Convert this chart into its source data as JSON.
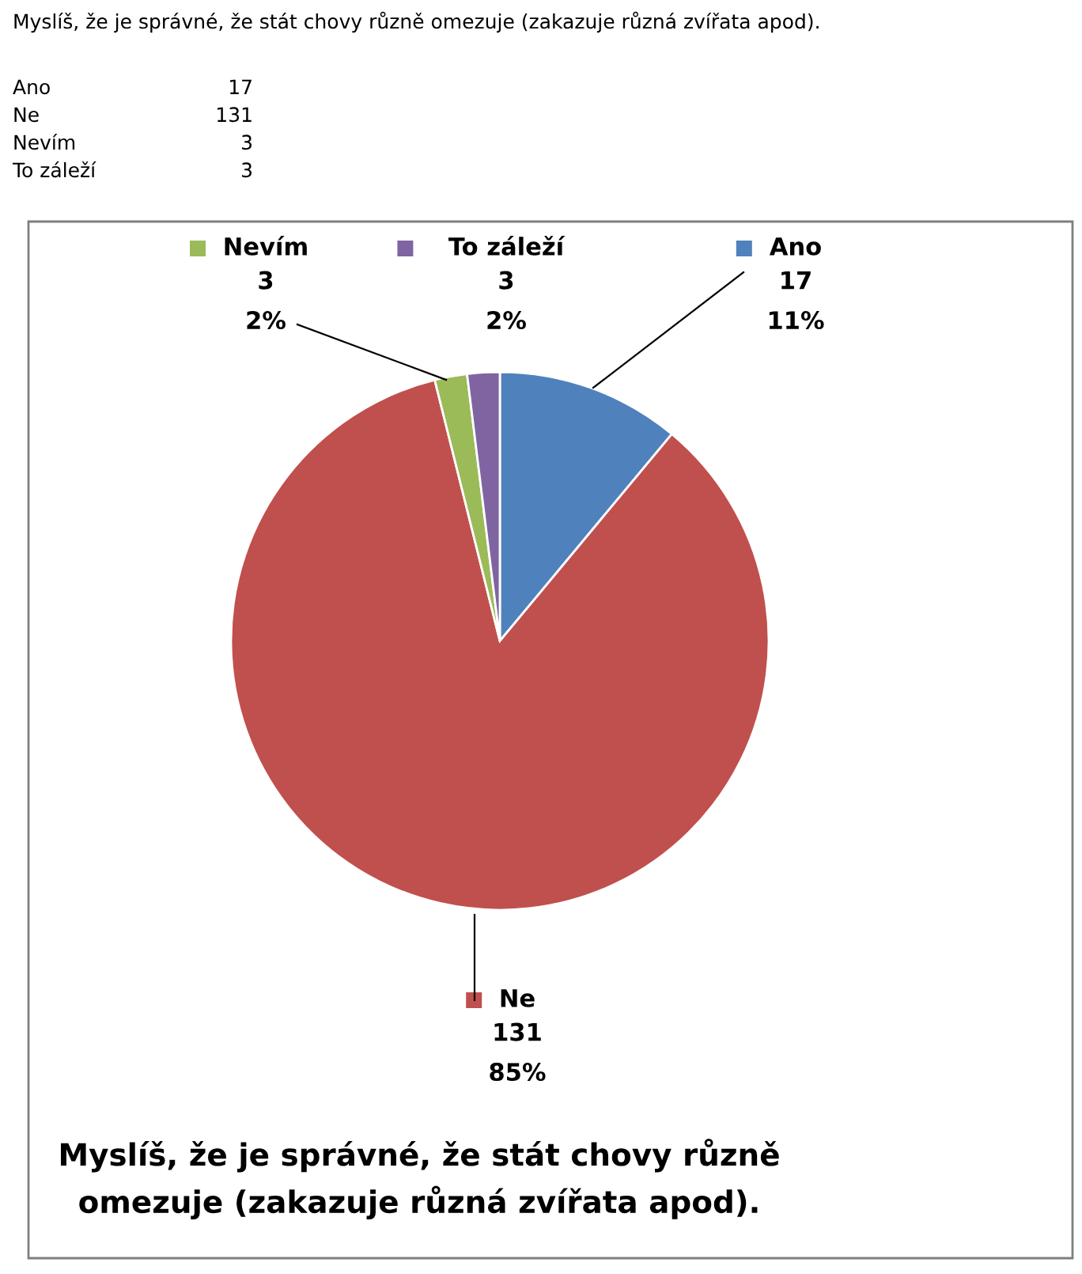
{
  "chart_data": {
    "type": "pie",
    "title": "Myslíš, že je správné, že stát chovy různě\nomezuje (zakazuje různá zvířata apod).",
    "annotations": [
      "Myslíš, že je správné, že stát chovy různě omezuje (zakazuje různá zvířata apod).",
      "Ano",
      "17",
      "Ne",
      "131",
      "Nevím",
      "3",
      "To záleží",
      "3"
    ],
    "categories": [
      "Ano",
      "Ne",
      "Nevím",
      "To záleží"
    ],
    "values": [
      17,
      131,
      3,
      3
    ],
    "colors": [
      "#4f81bd",
      "#c0504d",
      "#9bbb59",
      "#8064a2"
    ],
    "value_labels": [
      "17\n11%",
      "131\n85%",
      "3\n2%",
      "3\n2%"
    ],
    "legend": "top"
  }
}
